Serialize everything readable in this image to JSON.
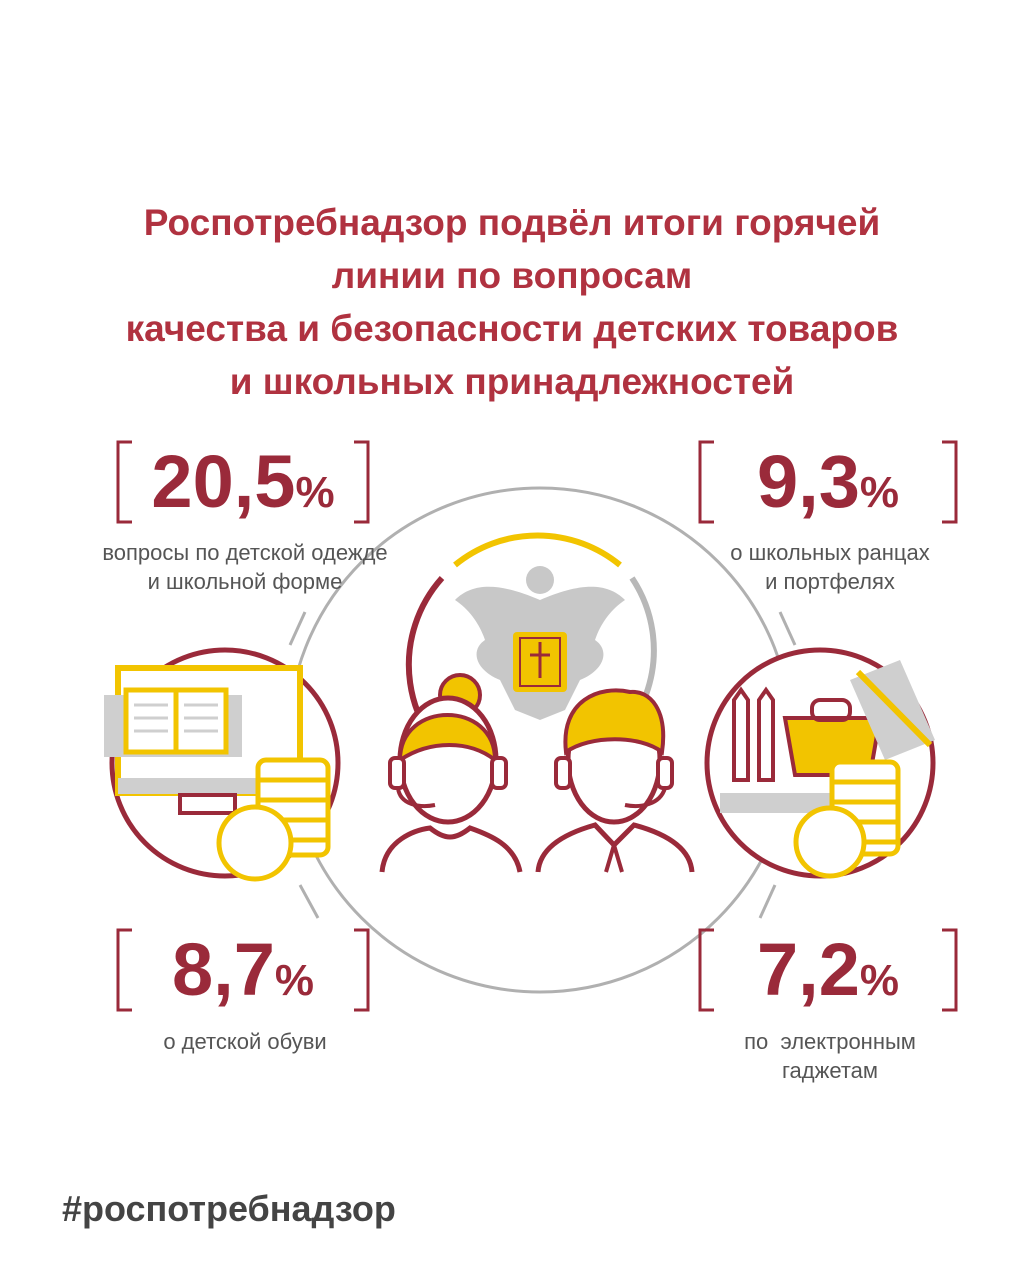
{
  "title": {
    "lines": [
      "Роспотребнадзор подвёл итоги горячей",
      "линии по вопросам",
      "качества и безопасности детских товаров",
      "и школьных принадлежностей"
    ]
  },
  "stats": [
    {
      "value": "20,5",
      "unit": "%",
      "label_lines": [
        "вопросы по детской одежде",
        "и школьной форме"
      ]
    },
    {
      "value": "9,3",
      "unit": "%",
      "label_lines": [
        "о школьных ранцах",
        "и портфелях"
      ]
    },
    {
      "value": "8,7",
      "unit": "%",
      "label_lines": [
        "о детской обуви"
      ]
    },
    {
      "value": "7,2",
      "unit": "%",
      "label_lines": [
        "по  электронным",
        "гаджетам"
      ]
    }
  ],
  "hashtag": "#роспотребнадзор",
  "colors": {
    "accent": "#9a2a3a",
    "yellow": "#f2c400",
    "gray": "#a8a8a8"
  },
  "icons": [
    "emblem-icon",
    "operator-woman-icon",
    "operator-man-icon",
    "computer-book-icon",
    "school-supplies-icon",
    "coins-icon"
  ]
}
